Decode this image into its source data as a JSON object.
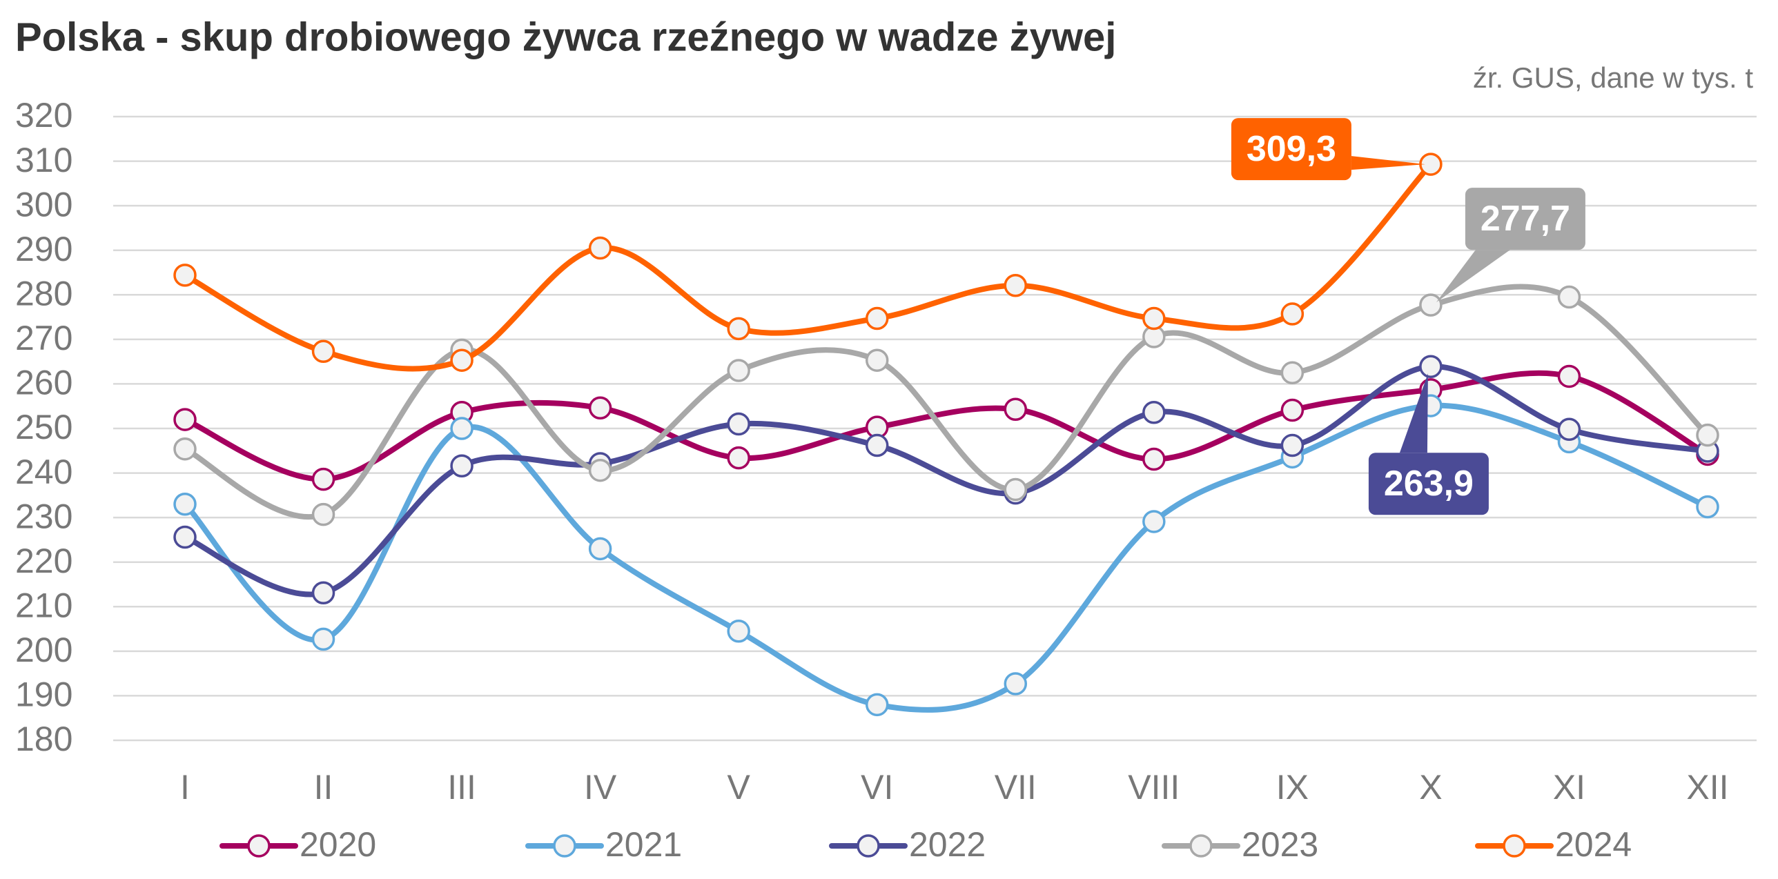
{
  "chart_data": {
    "type": "line",
    "title": "Polska - skup drobiowego żywca rzeźnego w wadze żywej",
    "subtitle": "źr. GUS, dane w tys. t",
    "categories": [
      "I",
      "II",
      "III",
      "IV",
      "V",
      "VI",
      "VII",
      "VIII",
      "IX",
      "X",
      "XI",
      "XII"
    ],
    "ylim": [
      180,
      320
    ],
    "yticks": [
      180,
      190,
      200,
      210,
      220,
      230,
      240,
      250,
      260,
      270,
      280,
      290,
      300,
      310,
      320
    ],
    "grid": true,
    "legend": "bottom",
    "smooth": true,
    "series": [
      {
        "name": "2020",
        "color": "#a5005f",
        "values": [
          252.0,
          238.6,
          253.6,
          254.6,
          243.4,
          250.3,
          254.3,
          243.1,
          254.1,
          258.7,
          261.7,
          244.2
        ]
      },
      {
        "name": "2021",
        "color": "#5ea8dc",
        "values": [
          233.0,
          202.7,
          250.0,
          223.0,
          204.5,
          188.0,
          192.7,
          229.1,
          243.6,
          255.1,
          247.0,
          232.4
        ]
      },
      {
        "name": "2022",
        "color": "#4b4b96",
        "values": [
          225.6,
          213.1,
          241.6,
          242.1,
          251.0,
          246.2,
          235.5,
          253.6,
          246.2,
          263.9,
          249.8,
          244.9
        ],
        "value_labels": [
          null,
          null,
          null,
          null,
          null,
          null,
          null,
          null,
          null,
          "263,9",
          null,
          null
        ]
      },
      {
        "name": "2023",
        "color": "#a8a8a8",
        "values": [
          245.4,
          230.7,
          267.6,
          240.6,
          263.0,
          265.3,
          236.3,
          270.6,
          262.5,
          277.7,
          279.5,
          248.5
        ],
        "value_labels": [
          null,
          null,
          null,
          null,
          null,
          null,
          null,
          null,
          null,
          "277,7",
          null,
          null
        ]
      },
      {
        "name": "2024",
        "color": "#ff6200",
        "values": [
          284.4,
          267.3,
          265.3,
          290.5,
          272.4,
          274.7,
          282.1,
          274.7,
          275.7,
          309.3,
          null,
          null
        ],
        "value_labels": [
          null,
          null,
          null,
          null,
          null,
          null,
          null,
          null,
          null,
          "309,3",
          null,
          null
        ]
      }
    ]
  }
}
